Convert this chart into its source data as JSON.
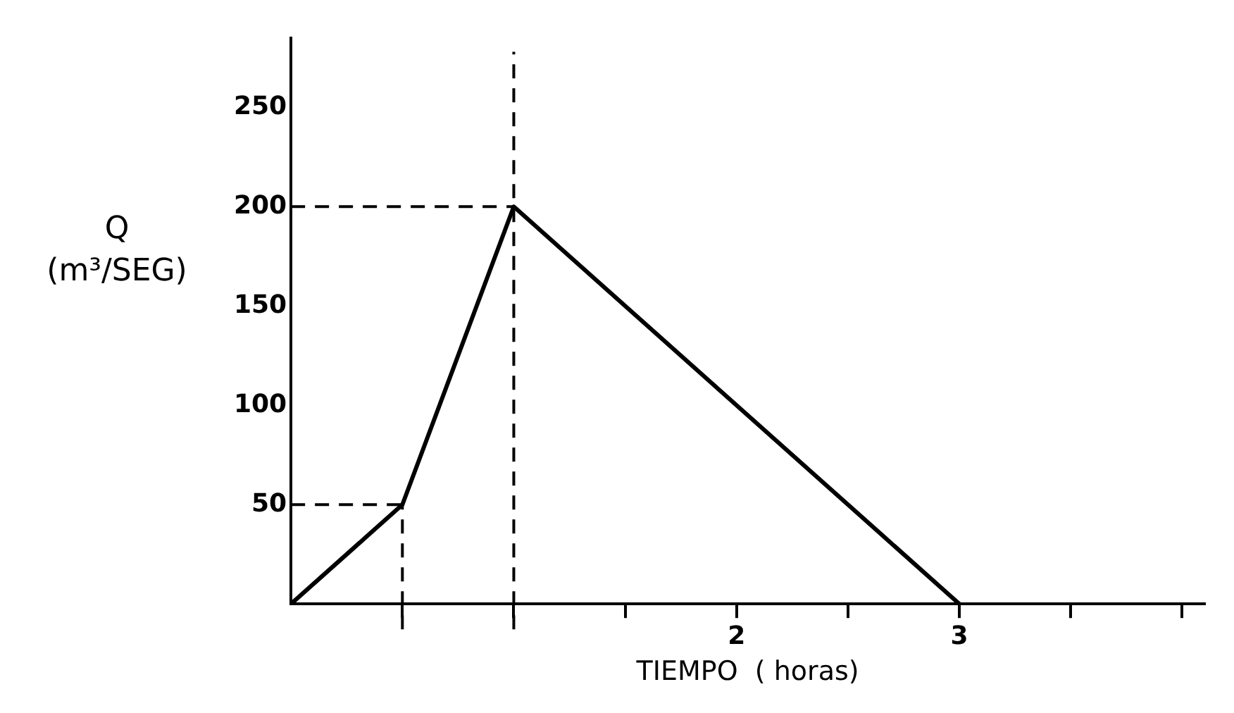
{
  "chart_data": {
    "type": "line",
    "xlabel": "TIEMPO  ( horas)",
    "ylabel": "Q\n(m³/SEG)",
    "x": [
      0,
      0.5,
      1,
      3
    ],
    "series": [
      {
        "color": "#000000",
        "values": [
          0,
          50,
          200,
          0
        ]
      }
    ],
    "xlim": [
      0,
      4.1
    ],
    "xticks": [
      {
        "value": 0.5,
        "label": null
      },
      {
        "value": 1,
        "label": null
      },
      {
        "value": 1.5,
        "label": null
      },
      2,
      {
        "value": 2.5,
        "label": null
      },
      3,
      {
        "value": 3.5,
        "label": null
      },
      {
        "value": 4,
        "label": null
      }
    ],
    "ylim": [
      0,
      285
    ],
    "yticks": [
      50,
      100,
      150,
      200,
      250
    ],
    "ref_lines": [
      {
        "axis": "y",
        "value": 50,
        "line_style": "dashed"
      },
      {
        "axis": "y",
        "value": 200,
        "line_style": "dashed"
      },
      {
        "axis": "x",
        "value": 0.5,
        "line_style": "dashed"
      },
      {
        "axis": "x",
        "value": 1,
        "line_style": "dashed"
      }
    ],
    "grid": false,
    "legend": false,
    "marker": "none",
    "line_style": "solid"
  }
}
